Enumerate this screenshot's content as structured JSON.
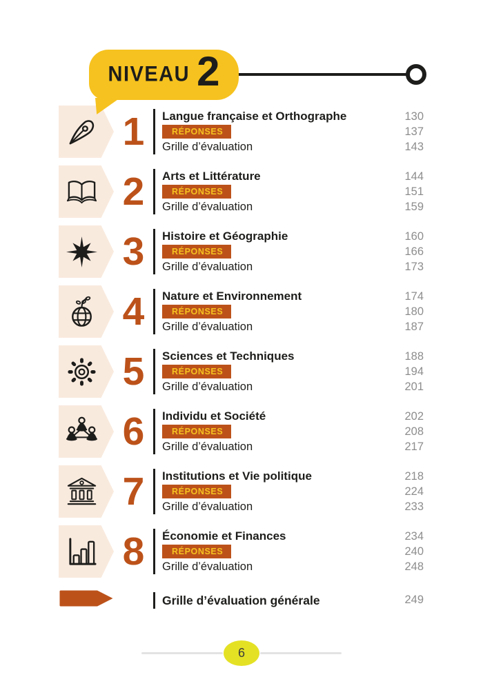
{
  "colors": {
    "orange": "#bc521a",
    "yellow": "#f6c21f",
    "beige": "#f9eade",
    "ink": "#1d1d1b",
    "page_number_gray": "#8d8d8d",
    "footer_yellow": "#e4e125"
  },
  "header": {
    "level_label": "NIVEAU",
    "level_number": "2"
  },
  "sections": [
    {
      "num": "1",
      "icon": "pen-nib-icon",
      "title": "Langue française et Orthographe",
      "badge": "RÉPONSES",
      "grille": "Grille d’évaluation",
      "pages": [
        "130",
        "137",
        "143"
      ]
    },
    {
      "num": "2",
      "icon": "open-book-icon",
      "title": "Arts et Littérature",
      "badge": "RÉPONSES",
      "grille": "Grille d’évaluation",
      "pages": [
        "144",
        "151",
        "159"
      ]
    },
    {
      "num": "3",
      "icon": "compass-rose-icon",
      "title": "Histoire et Géographie",
      "badge": "RÉPONSES",
      "grille": "Grille d’évaluation",
      "pages": [
        "160",
        "166",
        "173"
      ]
    },
    {
      "num": "4",
      "icon": "globe-sprout-icon",
      "title": "Nature et Environnement",
      "badge": "RÉPONSES",
      "grille": "Grille d’évaluation",
      "pages": [
        "174",
        "180",
        "187"
      ]
    },
    {
      "num": "5",
      "icon": "gear-icon",
      "title": "Sciences et Techniques",
      "badge": "RÉPONSES",
      "grille": "Grille d’évaluation",
      "pages": [
        "188",
        "194",
        "201"
      ]
    },
    {
      "num": "6",
      "icon": "people-network-icon",
      "title": "Individu et Société",
      "badge": "RÉPONSES",
      "grille": "Grille d’évaluation",
      "pages": [
        "202",
        "208",
        "217"
      ]
    },
    {
      "num": "7",
      "icon": "bank-icon",
      "title": "Institutions et Vie politique",
      "badge": "RÉPONSES",
      "grille": "Grille d’évaluation",
      "pages": [
        "218",
        "224",
        "233"
      ]
    },
    {
      "num": "8",
      "icon": "bar-chart-icon",
      "title": "Économie et Finances",
      "badge": "RÉPONSES",
      "grille": "Grille d’évaluation",
      "pages": [
        "234",
        "240",
        "248"
      ]
    }
  ],
  "general": {
    "title": "Grille d’évaluation générale",
    "page": "249"
  },
  "footer": {
    "page_number": "6"
  }
}
